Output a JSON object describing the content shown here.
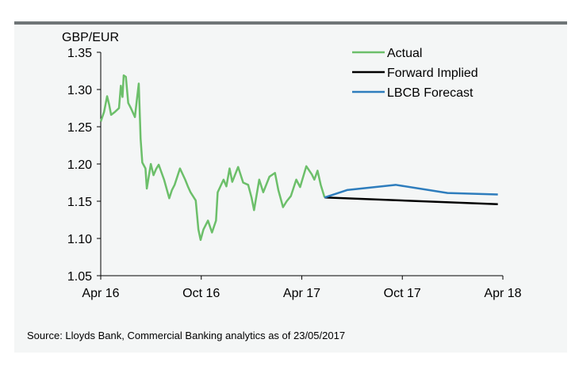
{
  "chart_data": {
    "type": "line",
    "ylabel": "GBP/EUR",
    "ylim": [
      1.05,
      1.35
    ],
    "yticks": [
      "1.35",
      "1.30",
      "1.25",
      "1.20",
      "1.15",
      "1.10",
      "1.05"
    ],
    "xlim_months_from_apr16": [
      0,
      24
    ],
    "xticks": [
      {
        "label": "Apr 16",
        "m": 0
      },
      {
        "label": "Oct 16",
        "m": 6
      },
      {
        "label": "Apr 17",
        "m": 12
      },
      {
        "label": "Oct 17",
        "m": 18
      },
      {
        "label": "Apr 18",
        "m": 24
      }
    ],
    "legend_position": "top-right",
    "series": [
      {
        "name": "Actual",
        "color": "#6cbf6a",
        "points": [
          [
            0,
            1.257
          ],
          [
            0.2,
            1.27
          ],
          [
            0.38,
            1.291
          ],
          [
            0.5,
            1.28
          ],
          [
            0.62,
            1.266
          ],
          [
            0.85,
            1.27
          ],
          [
            1.09,
            1.275
          ],
          [
            1.2,
            1.305
          ],
          [
            1.3,
            1.29
          ],
          [
            1.37,
            1.319
          ],
          [
            1.5,
            1.317
          ],
          [
            1.64,
            1.282
          ],
          [
            1.8,
            1.275
          ],
          [
            2.04,
            1.263
          ],
          [
            2.15,
            1.285
          ],
          [
            2.27,
            1.308
          ],
          [
            2.38,
            1.234
          ],
          [
            2.48,
            1.202
          ],
          [
            2.67,
            1.194
          ],
          [
            2.75,
            1.167
          ],
          [
            2.99,
            1.2
          ],
          [
            3.15,
            1.185
          ],
          [
            3.3,
            1.193
          ],
          [
            3.46,
            1.199
          ],
          [
            3.78,
            1.179
          ],
          [
            4.09,
            1.154
          ],
          [
            4.25,
            1.165
          ],
          [
            4.41,
            1.172
          ],
          [
            4.73,
            1.194
          ],
          [
            5.04,
            1.179
          ],
          [
            5.2,
            1.17
          ],
          [
            5.36,
            1.162
          ],
          [
            5.67,
            1.151
          ],
          [
            5.83,
            1.112
          ],
          [
            5.96,
            1.098
          ],
          [
            6.13,
            1.112
          ],
          [
            6.4,
            1.124
          ],
          [
            6.64,
            1.108
          ],
          [
            6.88,
            1.124
          ],
          [
            6.98,
            1.162
          ],
          [
            7.33,
            1.179
          ],
          [
            7.5,
            1.17
          ],
          [
            7.69,
            1.194
          ],
          [
            7.85,
            1.176
          ],
          [
            8.2,
            1.196
          ],
          [
            8.5,
            1.175
          ],
          [
            8.8,
            1.172
          ],
          [
            9.0,
            1.155
          ],
          [
            9.15,
            1.138
          ],
          [
            9.46,
            1.179
          ],
          [
            9.7,
            1.162
          ],
          [
            10.07,
            1.183
          ],
          [
            10.4,
            1.188
          ],
          [
            10.6,
            1.165
          ],
          [
            10.88,
            1.142
          ],
          [
            11.1,
            1.15
          ],
          [
            11.35,
            1.157
          ],
          [
            11.67,
            1.179
          ],
          [
            11.9,
            1.169
          ],
          [
            12.27,
            1.197
          ],
          [
            12.6,
            1.186
          ],
          [
            12.75,
            1.179
          ],
          [
            12.94,
            1.191
          ],
          [
            13.13,
            1.172
          ],
          [
            13.36,
            1.155
          ]
        ]
      },
      {
        "name": "Forward Implied",
        "color": "#000000",
        "points": [
          [
            13.36,
            1.155
          ],
          [
            23.7,
            1.146
          ]
        ]
      },
      {
        "name": "LBCB Forecast",
        "color": "#2e7dbd",
        "points": [
          [
            13.36,
            1.155
          ],
          [
            14.7,
            1.165
          ],
          [
            17.6,
            1.172
          ],
          [
            20.7,
            1.161
          ],
          [
            23.7,
            1.159
          ]
        ]
      }
    ]
  },
  "source": "Source: Lloyds Bank, Commercial Banking analytics as of 23/05/2017"
}
